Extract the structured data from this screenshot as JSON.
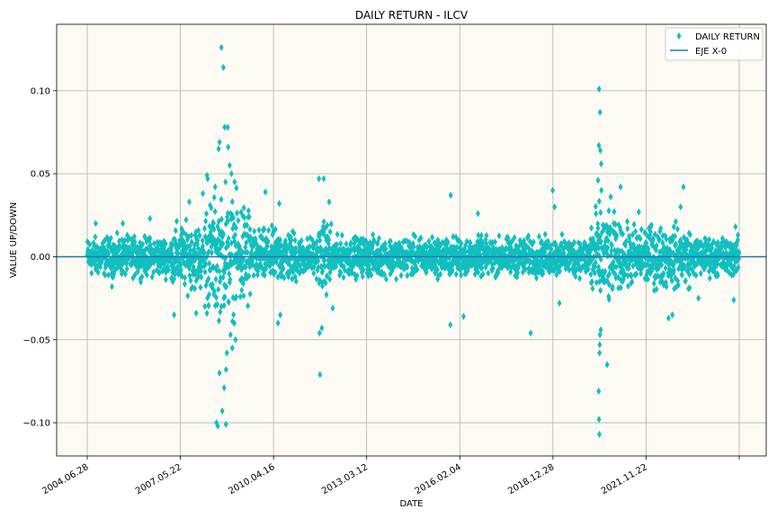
{
  "chart_data": {
    "type": "scatter",
    "title": "DAILY RETURN - ILCV",
    "xlabel": "DATE",
    "ylabel": "VALUE UP/DOWN",
    "x_range": [
      "2004-06-28",
      "2024-07-01"
    ],
    "ylim": [
      -0.12,
      0.14
    ],
    "x_ticks": [
      "2004.06.28",
      "2007.05.22",
      "2010.04.16",
      "2013.03.12",
      "2016.02.04",
      "2018.12.28",
      "2021.11.22",
      ""
    ],
    "y_ticks": [
      {
        "value": -0.1,
        "label": "−0.10"
      },
      {
        "value": -0.05,
        "label": "−0.05"
      },
      {
        "value": 0.0,
        "label": "0.00"
      },
      {
        "value": 0.05,
        "label": "0.05"
      },
      {
        "value": 0.1,
        "label": "0.10"
      }
    ],
    "grid": true,
    "legend": {
      "placement": "upper right",
      "entries": [
        {
          "label": "DAILY RETURN",
          "marker": "diamond",
          "color": "#12bfbf"
        },
        {
          "label": "EJE X-0",
          "marker": "line",
          "color": "#1f77b4"
        }
      ]
    },
    "series": [
      {
        "name": "DAILY RETURN",
        "color": "#12bfbf",
        "points": [
          [
            "2008-08-10",
            0.126
          ],
          [
            "2008-09-01",
            0.114
          ],
          [
            "2008-09-15",
            0.078
          ],
          [
            "2008-10-20",
            0.078
          ],
          [
            "2008-10-25",
            0.066
          ],
          [
            "2008-07-20",
            0.069
          ],
          [
            "2008-07-10",
            0.065
          ],
          [
            "2008-11-10",
            0.055
          ],
          [
            "2008-12-01",
            0.05
          ],
          [
            "2008-03-01",
            0.049
          ],
          [
            "2008-03-10",
            0.047
          ],
          [
            "2009-01-05",
            0.045
          ],
          [
            "2008-09-25",
            0.045
          ],
          [
            "2008-06-01",
            0.042
          ],
          [
            "2008-01-15",
            0.038
          ],
          [
            "2008-06-15",
            -0.1
          ],
          [
            "2008-07-01",
            -0.102
          ],
          [
            "2008-09-30",
            -0.101
          ],
          [
            "2008-08-20",
            -0.093
          ],
          [
            "2008-09-10",
            -0.079
          ],
          [
            "2008-07-20",
            -0.07
          ],
          [
            "2008-10-01",
            -0.068
          ],
          [
            "2008-12-10",
            -0.055
          ],
          [
            "2009-01-15",
            -0.05
          ],
          [
            "2008-10-10",
            -0.058
          ],
          [
            "2008-11-20",
            -0.047
          ],
          [
            "2011-08-08",
            0.047
          ],
          [
            "2011-10-01",
            0.047
          ],
          [
            "2011-08-20",
            -0.071
          ],
          [
            "2011-09-10",
            -0.043
          ],
          [
            "2011-08-15",
            -0.046
          ],
          [
            "2011-12-01",
            0.033
          ],
          [
            "2012-01-10",
            -0.031
          ],
          [
            "2009-12-15",
            0.039
          ],
          [
            "2010-05-06",
            -0.04
          ],
          [
            "2010-06-01",
            -0.035
          ],
          [
            "2010-05-20",
            0.032
          ],
          [
            "2015-08-24",
            0.037
          ],
          [
            "2015-08-20",
            -0.041
          ],
          [
            "2016-01-15",
            -0.036
          ],
          [
            "2016-06-24",
            0.026
          ],
          [
            "2018-02-05",
            -0.046
          ],
          [
            "2018-10-10",
            0.04
          ],
          [
            "2018-11-01",
            0.03
          ],
          [
            "2018-12-24",
            -0.028
          ],
          [
            "2020-03-13",
            0.101
          ],
          [
            "2020-03-24",
            0.087
          ],
          [
            "2020-03-10",
            0.067
          ],
          [
            "2020-03-27",
            0.064
          ],
          [
            "2020-04-06",
            0.056
          ],
          [
            "2020-03-02",
            0.046
          ],
          [
            "2020-04-08",
            0.04
          ],
          [
            "2020-03-16",
            -0.107
          ],
          [
            "2020-03-12",
            -0.098
          ],
          [
            "2020-03-09",
            -0.081
          ],
          [
            "2020-06-11",
            -0.065
          ],
          [
            "2020-03-18",
            -0.058
          ],
          [
            "2020-03-20",
            -0.053
          ],
          [
            "2020-03-23",
            -0.047
          ],
          [
            "2020-04-01",
            -0.044
          ],
          [
            "2020-11-09",
            0.042
          ],
          [
            "2022-10-15",
            0.042
          ],
          [
            "2022-05-01",
            -0.037
          ],
          [
            "2022-06-13",
            -0.035
          ],
          [
            "2022-09-13",
            0.03
          ],
          [
            "2021-06-01",
            0.027
          ],
          [
            "2023-04-01",
            -0.025
          ],
          [
            "2024-05-01",
            -0.026
          ],
          [
            "2024-05-20",
            0.018
          ],
          [
            "2006-06-01",
            0.023
          ],
          [
            "2005-08-01",
            0.02
          ],
          [
            "2007-02-27",
            -0.035
          ],
          [
            "2007-08-16",
            0.033
          ],
          [
            "2007-11-01",
            -0.034
          ],
          [
            "2004-10-01",
            0.02
          ],
          [
            "2005-04-01",
            -0.018
          ]
        ],
        "background_band": "remaining trading days fall in approximately ±0.012 to ±0.035 depending on period volatility"
      },
      {
        "name": "EJE X-0",
        "color": "#1f77b4",
        "points": [
          [
            "2004-06-28",
            0.0
          ],
          [
            "2024-07-01",
            0.0
          ]
        ]
      }
    ]
  }
}
